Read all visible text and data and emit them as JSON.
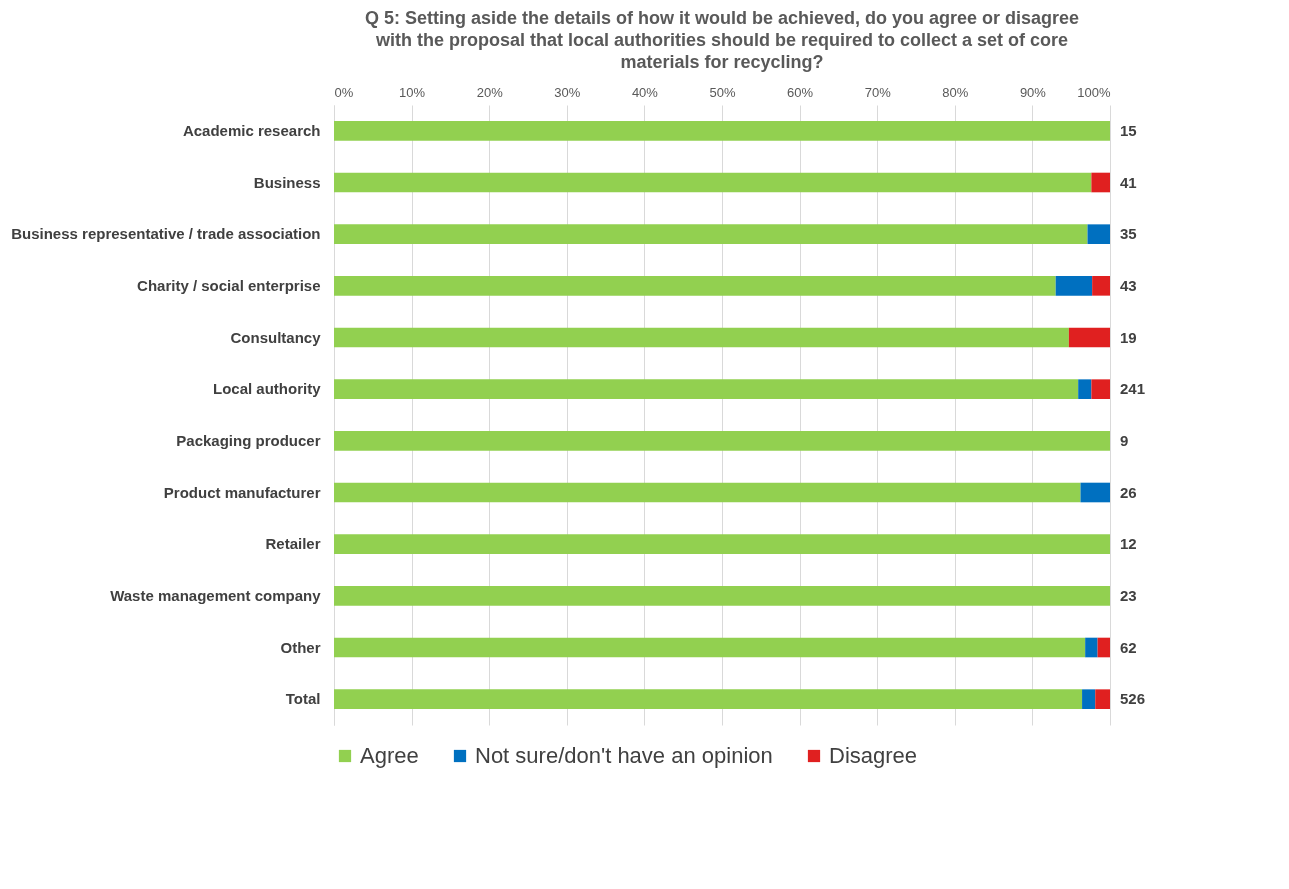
{
  "chart_data": {
    "type": "bar",
    "orientation": "horizontal",
    "stacked": true,
    "title": "Q 5:  Setting aside the details of how it would be achieved, do you agree or disagree with the proposal that local authorities should be required to collect a set of core materials for recycling?",
    "categories": [
      "Academic research",
      "Business",
      "Business representative / trade association",
      "Charity / social enterprise",
      "Consultancy",
      "Local authority",
      "Packaging producer",
      "Product manufacturer",
      "Retailer",
      "Waste management company",
      "Other",
      "Total"
    ],
    "series": [
      {
        "name": "Agree",
        "color": "#92d050",
        "values": [
          100,
          97.6,
          97.1,
          93.0,
          94.7,
          95.9,
          100,
          96.2,
          100,
          100,
          96.8,
          96.4
        ]
      },
      {
        "name": "Not sure/don't have an opinion",
        "color": "#0070c0",
        "values": [
          0,
          0,
          2.9,
          4.7,
          0,
          1.7,
          0,
          3.8,
          0,
          0,
          1.6,
          1.7
        ]
      },
      {
        "name": "Disagree",
        "color": "#e02020",
        "values": [
          0,
          2.4,
          0,
          2.3,
          5.3,
          2.4,
          0,
          0,
          0,
          0,
          1.6,
          1.9
        ]
      }
    ],
    "annotations": [
      "15",
      "41",
      "35",
      "43",
      "19",
      "241",
      "9",
      "26",
      "12",
      "23",
      "62",
      "526"
    ],
    "xlim": [
      0,
      100
    ],
    "xticks": [
      {
        "value": 0,
        "label": "0%"
      },
      {
        "value": 10,
        "label": "10%"
      },
      {
        "value": 20,
        "label": "20%"
      },
      {
        "value": 30,
        "label": "30%"
      },
      {
        "value": 40,
        "label": "40%"
      },
      {
        "value": 50,
        "label": "50%"
      },
      {
        "value": 60,
        "label": "60%"
      },
      {
        "value": 70,
        "label": "70%"
      },
      {
        "value": 80,
        "label": "80%"
      },
      {
        "value": 90,
        "label": "90%"
      },
      {
        "value": 100,
        "label": "100%"
      }
    ],
    "grid": "x",
    "legend": "bottom"
  }
}
